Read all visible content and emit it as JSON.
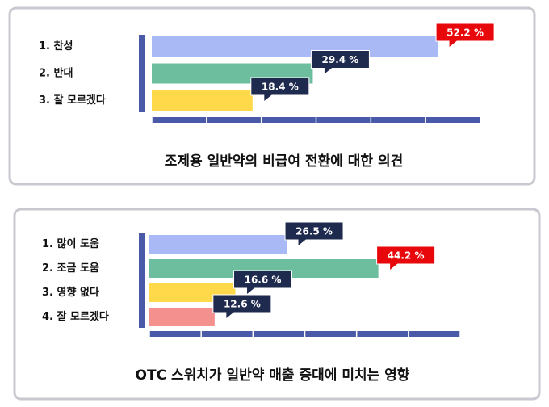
{
  "chart_data": [
    {
      "type": "bar",
      "orientation": "horizontal",
      "title": "조제용 일반약의 비급여 전환에 대한 의견",
      "categories": [
        "1. 찬성",
        "2. 반대",
        "3. 잘 모르겠다"
      ],
      "values": [
        52.2,
        29.4,
        18.4
      ],
      "value_labels": [
        "52.2 %",
        "29.4 %",
        "18.4 %"
      ],
      "colors": [
        "#a9b9f6",
        "#6dbd9f",
        "#ffd94a"
      ],
      "xlim": [
        0,
        60
      ],
      "xticks": [
        0,
        10,
        20,
        30,
        40,
        50,
        60
      ]
    },
    {
      "type": "bar",
      "orientation": "horizontal",
      "title": "OTC 스위치가 일반약 매출 증대에 미치는 영향",
      "categories": [
        "1. 많이 도움",
        "2. 조금 도움",
        "3. 영향 없다",
        "4. 잘 모르겠다"
      ],
      "values": [
        26.5,
        44.2,
        16.6,
        12.6
      ],
      "value_labels": [
        "26.5 %",
        "44.2 %",
        "16.6 %",
        "12.6 %"
      ],
      "colors": [
        "#a9b9f6",
        "#6dbd9f",
        "#ffd94a",
        "#f4918f"
      ],
      "xlim": [
        0,
        60
      ],
      "xticks": [
        0,
        10,
        20,
        30,
        40,
        50,
        60
      ]
    }
  ]
}
